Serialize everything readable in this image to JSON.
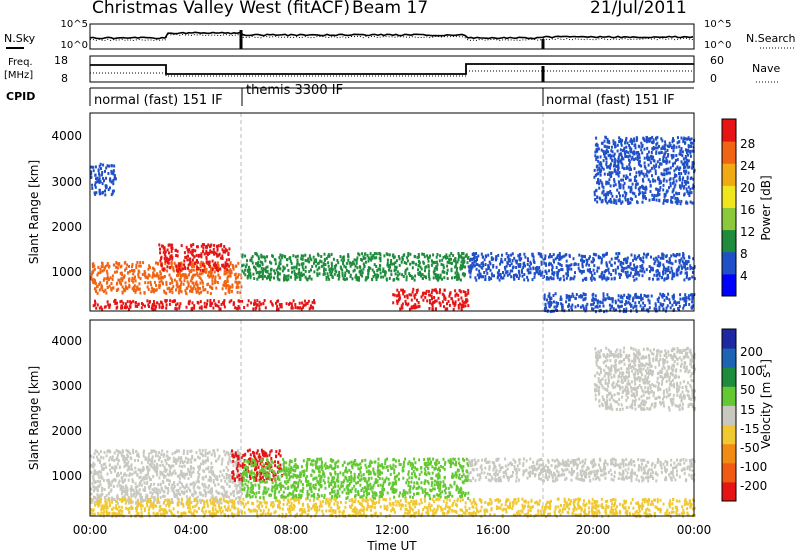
{
  "header": {
    "title": "Christmas Valley West (fitACF)",
    "beam": "Beam 17",
    "date": "21/Jul/2011"
  },
  "noise_panel": {
    "left_label": "N.Sky",
    "right_label": "N.Search",
    "left_ticks": [
      "10^5",
      "10^0"
    ],
    "right_ticks": [
      "10^5",
      "10^0"
    ]
  },
  "freq_panel": {
    "left_label_1": "Freq.",
    "left_label_2": "[MHz]",
    "right_label": "Nave",
    "left_ticks": [
      "18",
      "8"
    ],
    "right_ticks": [
      "60",
      "0"
    ]
  },
  "cpid": {
    "label": "CPID",
    "segments": [
      "normal (fast) 151 IF",
      "themis 3300 IF",
      "normal (fast) 151 IF"
    ]
  },
  "x_axis": {
    "label": "Time UT",
    "ticks": [
      "00:00",
      "04:00",
      "08:00",
      "12:00",
      "16:00",
      "20:00",
      "00:00"
    ]
  },
  "power_panel": {
    "ylabel": "Slant Range [km]",
    "yticks": [
      "4000",
      "3000",
      "2000",
      "1000"
    ],
    "colorbar_label": "Power [dB]",
    "colorbar_ticks": [
      "28",
      "24",
      "20",
      "16",
      "12",
      "8",
      "4"
    ],
    "colorbar_colors": [
      "#0000ff",
      "#2050c8",
      "#1e8c3c",
      "#8cc83c",
      "#f0e61e",
      "#f0aa14",
      "#f06414",
      "#e61414"
    ]
  },
  "velocity_panel": {
    "ylabel": "Slant Range [km]",
    "yticks": [
      "4000",
      "3000",
      "2000",
      "1000"
    ],
    "colorbar_label": "Velocity [m s",
    "colorbar_label_exp": "-1",
    "colorbar_ticks": [
      "200",
      "100",
      "50",
      "15",
      "-15",
      "-50",
      "-100",
      "-200"
    ],
    "colorbar_colors": [
      "#1e28a0",
      "#1e64b4",
      "#1e8c3c",
      "#64c832",
      "#c8c8c0",
      "#f0c832",
      "#f08c14",
      "#f05a14",
      "#e61414"
    ]
  },
  "chart_data": {
    "type": "heatmap",
    "x_range_hours": [
      0,
      24
    ],
    "y_range_km": [
      180,
      4600
    ],
    "mode_change_hours": [
      6,
      18
    ],
    "scatter_regions_power": [
      {
        "t0": 0,
        "t1": 6,
        "r0": 600,
        "r1": 1300,
        "color": "#f06414"
      },
      {
        "t0": 2.7,
        "t1": 5.5,
        "r0": 1100,
        "r1": 1700,
        "color": "#e61414"
      },
      {
        "t0": 0,
        "t1": 9,
        "r0": 250,
        "r1": 450,
        "color": "#e61414"
      },
      {
        "t0": 6,
        "t1": 15,
        "r0": 900,
        "r1": 1500,
        "color": "#1e8c3c"
      },
      {
        "t0": 12,
        "t1": 15,
        "r0": 250,
        "r1": 700,
        "color": "#e61414"
      },
      {
        "t0": 15,
        "t1": 24,
        "r0": 900,
        "r1": 1500,
        "color": "#2050c8"
      },
      {
        "t0": 18,
        "t1": 24,
        "r0": 200,
        "r1": 600,
        "color": "#2050c8"
      },
      {
        "t0": 0,
        "t1": 1,
        "r0": 2800,
        "r1": 3500,
        "color": "#2050c8"
      },
      {
        "t0": 20,
        "t1": 24,
        "r0": 2600,
        "r1": 4100,
        "color": "#2050c8"
      }
    ],
    "scatter_regions_velocity": [
      {
        "t0": 0,
        "t1": 6,
        "r0": 500,
        "r1": 1700,
        "color": "#c8c8c0"
      },
      {
        "t0": 5.6,
        "t1": 7.6,
        "r0": 1000,
        "r1": 1700,
        "color": "#e61414"
      },
      {
        "t0": 6,
        "t1": 15,
        "r0": 600,
        "r1": 1500,
        "color": "#64c832"
      },
      {
        "t0": 15,
        "t1": 24,
        "r0": 1000,
        "r1": 1500,
        "color": "#c8c8c0"
      },
      {
        "t0": 0,
        "t1": 24,
        "r0": 200,
        "r1": 600,
        "color": "#f0c832"
      },
      {
        "t0": 20,
        "t1": 24,
        "r0": 2600,
        "r1": 4000,
        "color": "#c8c8c0"
      }
    ]
  }
}
